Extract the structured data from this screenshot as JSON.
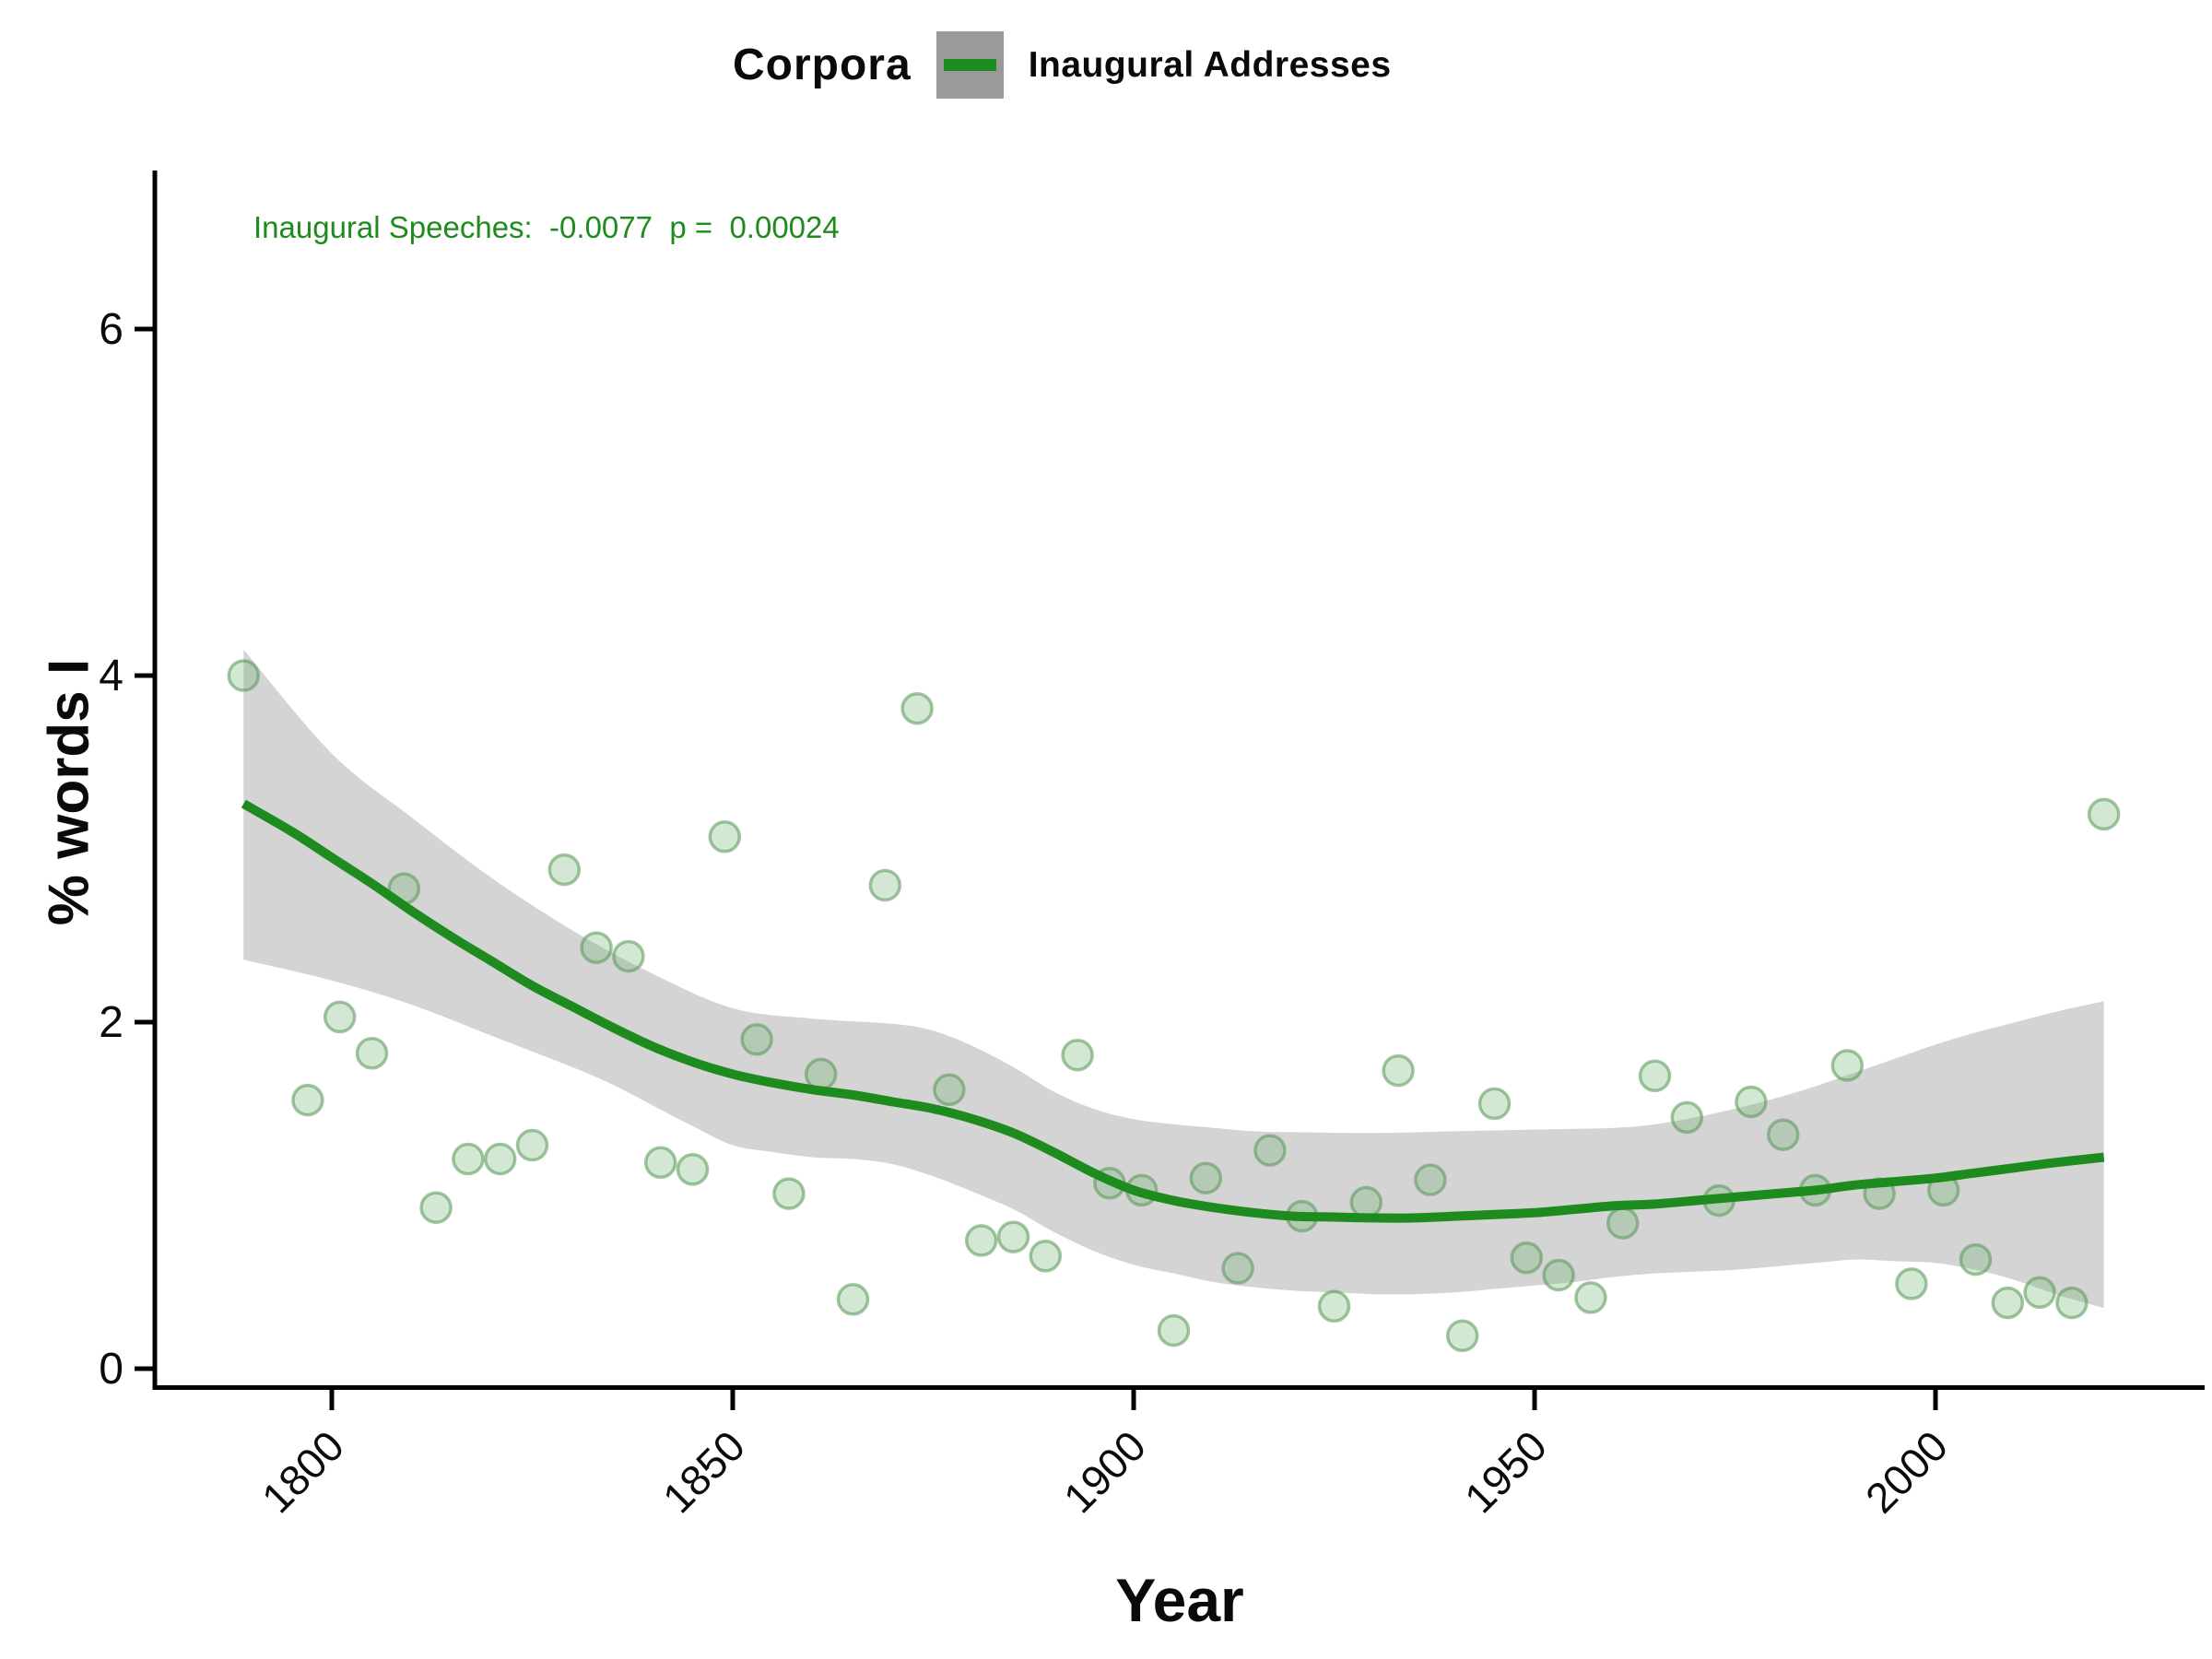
{
  "header": {
    "legend_title": "Corpora",
    "legend_entry": "Inaugural Addresses",
    "legend_key_color": "#9a9a9a",
    "legend_line_color": "#1e8b1e"
  },
  "annotation": {
    "text": "Inaugural Speeches:  -0.0077  p =  0.00024",
    "color": "#1e8b1e"
  },
  "chart_data": {
    "type": "scatter",
    "title": "Corpora — Inaugural Addresses",
    "xlabel": "Year",
    "ylabel": "% words I",
    "x_ticks": [
      1800,
      1850,
      1900,
      1950,
      2000
    ],
    "y_ticks": [
      0,
      2,
      4,
      6
    ],
    "xlim": [
      1785,
      2026
    ],
    "ylim": [
      -0.1,
      7.0
    ],
    "grid": "off",
    "legend_position": "top",
    "series": [
      {
        "name": "Inaugural Addresses points",
        "kind": "scatter",
        "points": [
          [
            1789,
            4.0
          ],
          [
            1797,
            1.55
          ],
          [
            1801,
            2.03
          ],
          [
            1805,
            1.82
          ],
          [
            1809,
            2.77
          ],
          [
            1813,
            0.93
          ],
          [
            1817,
            1.21
          ],
          [
            1821,
            1.21
          ],
          [
            1825,
            1.29
          ],
          [
            1829,
            2.88
          ],
          [
            1833,
            2.43
          ],
          [
            1837,
            2.38
          ],
          [
            1841,
            1.19
          ],
          [
            1845,
            1.15
          ],
          [
            1849,
            3.07
          ],
          [
            1853,
            1.9
          ],
          [
            1857,
            1.01
          ],
          [
            1861,
            1.7
          ],
          [
            1865,
            0.4
          ],
          [
            1869,
            2.79
          ],
          [
            1873,
            3.81
          ],
          [
            1877,
            1.61
          ],
          [
            1881,
            0.74
          ],
          [
            1885,
            0.76
          ],
          [
            1889,
            0.65
          ],
          [
            1893,
            1.81
          ],
          [
            1897,
            1.07
          ],
          [
            1901,
            1.03
          ],
          [
            1905,
            0.22
          ],
          [
            1909,
            1.1
          ],
          [
            1913,
            0.58
          ],
          [
            1917,
            1.26
          ],
          [
            1921,
            0.88
          ],
          [
            1925,
            0.36
          ],
          [
            1929,
            0.96
          ],
          [
            1933,
            1.72
          ],
          [
            1937,
            1.09
          ],
          [
            1941,
            0.19
          ],
          [
            1945,
            1.53
          ],
          [
            1949,
            0.64
          ],
          [
            1953,
            0.54
          ],
          [
            1957,
            0.41
          ],
          [
            1961,
            0.84
          ],
          [
            1965,
            1.69
          ],
          [
            1969,
            1.45
          ],
          [
            1973,
            0.97
          ],
          [
            1977,
            1.54
          ],
          [
            1981,
            1.35
          ],
          [
            1985,
            1.03
          ],
          [
            1989,
            1.75
          ],
          [
            1993,
            1.01
          ],
          [
            1997,
            0.49
          ],
          [
            2001,
            1.03
          ],
          [
            2005,
            0.63
          ],
          [
            2009,
            0.38
          ],
          [
            2013,
            0.44
          ],
          [
            2017,
            0.38
          ],
          [
            2021,
            3.2
          ]
        ]
      },
      {
        "name": "loess smooth",
        "kind": "line",
        "points": [
          [
            1789,
            3.26
          ],
          [
            1795,
            3.1
          ],
          [
            1800,
            2.95
          ],
          [
            1805,
            2.8
          ],
          [
            1810,
            2.64
          ],
          [
            1815,
            2.49
          ],
          [
            1820,
            2.35
          ],
          [
            1825,
            2.21
          ],
          [
            1830,
            2.09
          ],
          [
            1835,
            1.97
          ],
          [
            1840,
            1.86
          ],
          [
            1845,
            1.77
          ],
          [
            1850,
            1.7
          ],
          [
            1855,
            1.65
          ],
          [
            1860,
            1.61
          ],
          [
            1865,
            1.58
          ],
          [
            1870,
            1.54
          ],
          [
            1875,
            1.5
          ],
          [
            1880,
            1.44
          ],
          [
            1885,
            1.36
          ],
          [
            1890,
            1.25
          ],
          [
            1895,
            1.13
          ],
          [
            1900,
            1.03
          ],
          [
            1905,
            0.97
          ],
          [
            1910,
            0.93
          ],
          [
            1915,
            0.9
          ],
          [
            1920,
            0.88
          ],
          [
            1925,
            0.875
          ],
          [
            1930,
            0.87
          ],
          [
            1935,
            0.87
          ],
          [
            1940,
            0.88
          ],
          [
            1945,
            0.89
          ],
          [
            1950,
            0.9
          ],
          [
            1955,
            0.92
          ],
          [
            1960,
            0.94
          ],
          [
            1965,
            0.95
          ],
          [
            1970,
            0.97
          ],
          [
            1975,
            0.99
          ],
          [
            1980,
            1.01
          ],
          [
            1985,
            1.03
          ],
          [
            1990,
            1.06
          ],
          [
            1995,
            1.08
          ],
          [
            2000,
            1.1
          ],
          [
            2005,
            1.13
          ],
          [
            2010,
            1.16
          ],
          [
            2015,
            1.19
          ],
          [
            2021,
            1.22
          ]
        ]
      },
      {
        "name": "confidence band upper",
        "kind": "band-upper",
        "points": [
          [
            1789,
            4.15
          ],
          [
            1800,
            3.55
          ],
          [
            1810,
            3.18
          ],
          [
            1820,
            2.83
          ],
          [
            1830,
            2.53
          ],
          [
            1840,
            2.28
          ],
          [
            1850,
            2.08
          ],
          [
            1860,
            2.02
          ],
          [
            1870,
            1.99
          ],
          [
            1875,
            1.95
          ],
          [
            1880,
            1.86
          ],
          [
            1885,
            1.74
          ],
          [
            1890,
            1.6
          ],
          [
            1895,
            1.5
          ],
          [
            1900,
            1.44
          ],
          [
            1905,
            1.41
          ],
          [
            1910,
            1.39
          ],
          [
            1915,
            1.37
          ],
          [
            1920,
            1.365
          ],
          [
            1930,
            1.36
          ],
          [
            1940,
            1.37
          ],
          [
            1950,
            1.38
          ],
          [
            1960,
            1.39
          ],
          [
            1965,
            1.41
          ],
          [
            1970,
            1.45
          ],
          [
            1975,
            1.5
          ],
          [
            1980,
            1.56
          ],
          [
            1985,
            1.63
          ],
          [
            1990,
            1.71
          ],
          [
            1995,
            1.79
          ],
          [
            2000,
            1.87
          ],
          [
            2005,
            1.94
          ],
          [
            2010,
            2.0
          ],
          [
            2015,
            2.06
          ],
          [
            2021,
            2.12
          ]
        ]
      },
      {
        "name": "confidence band lower",
        "kind": "band-lower",
        "points": [
          [
            1789,
            2.36
          ],
          [
            1800,
            2.24
          ],
          [
            1810,
            2.1
          ],
          [
            1820,
            1.92
          ],
          [
            1830,
            1.74
          ],
          [
            1835,
            1.64
          ],
          [
            1840,
            1.52
          ],
          [
            1845,
            1.4
          ],
          [
            1850,
            1.29
          ],
          [
            1855,
            1.25
          ],
          [
            1860,
            1.22
          ],
          [
            1865,
            1.21
          ],
          [
            1870,
            1.18
          ],
          [
            1875,
            1.11
          ],
          [
            1880,
            1.02
          ],
          [
            1885,
            0.92
          ],
          [
            1890,
            0.79
          ],
          [
            1895,
            0.68
          ],
          [
            1900,
            0.6
          ],
          [
            1905,
            0.55
          ],
          [
            1910,
            0.5
          ],
          [
            1915,
            0.47
          ],
          [
            1920,
            0.45
          ],
          [
            1925,
            0.44
          ],
          [
            1930,
            0.43
          ],
          [
            1935,
            0.43
          ],
          [
            1940,
            0.44
          ],
          [
            1945,
            0.46
          ],
          [
            1950,
            0.48
          ],
          [
            1955,
            0.5
          ],
          [
            1960,
            0.53
          ],
          [
            1965,
            0.55
          ],
          [
            1970,
            0.56
          ],
          [
            1975,
            0.57
          ],
          [
            1980,
            0.59
          ],
          [
            1985,
            0.61
          ],
          [
            1990,
            0.63
          ],
          [
            1995,
            0.62
          ],
          [
            2000,
            0.61
          ],
          [
            2005,
            0.57
          ],
          [
            2010,
            0.51
          ],
          [
            2015,
            0.43
          ],
          [
            2021,
            0.35
          ]
        ]
      }
    ],
    "colors": {
      "smooth_line": "#1e8b1e",
      "band_fill": "rgba(125,125,125,0.33)",
      "point_fill": "rgba(110,178,108,0.30)",
      "point_stroke": "rgba(85,150,84,0.55)",
      "axis": "#000000"
    }
  },
  "axes": {
    "x_title": "Year",
    "y_title": "% words I",
    "x_tick_labels": [
      "1800",
      "1850",
      "1900",
      "1950",
      "2000"
    ],
    "y_tick_labels": [
      "0",
      "2",
      "4",
      "6"
    ]
  }
}
